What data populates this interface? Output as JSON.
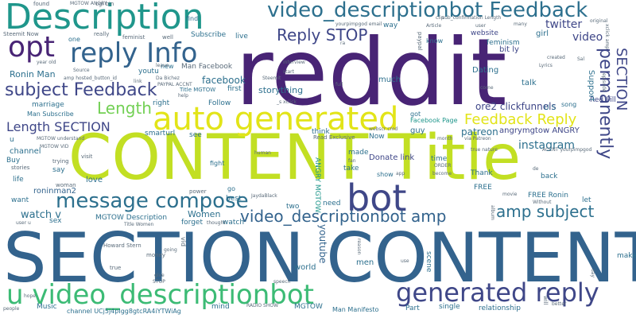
{
  "words": {
    "reddit": "reddit",
    "content_title": "CONTENT Title",
    "section_content": "SECTION CONTENT",
    "description": "Description",
    "video_descriptionbot_feedback": "video_descriptionbot Feedback",
    "opt": "opt",
    "reply_info": "reply Info",
    "reply_stop": "Reply STOP",
    "auto_generated": "auto generated",
    "bot": "bot",
    "subject_feedback": "subject Feedback",
    "length": "Length",
    "length_section": "Length SECTION",
    "message_compose": "message compose",
    "video_descriptionbot_amp": "video_descriptionbot amp",
    "amp_subject": "amp subject",
    "u_video_descriptionbot": "u video_descriptionbot",
    "generated_reply": "generated reply",
    "feedback_reply": "Feedback Reply",
    "permanently": "permanently",
    "section_v": "SECTION",
    "twitter": "twitter",
    "video": "video",
    "instagram": "instagram",
    "patreon": "patreon",
    "facebook": "facebook",
    "man_facebook": "Man Facebook",
    "storything": "storything",
    "ronin_man": "Ronin Man",
    "subscribe": "Subscribe",
    "sub_it": "sub it",
    "youtube": "youtube",
    "watch_v": "watch v",
    "women": "Women",
    "mgtow_description": "MGTOW Description",
    "ronin_man2": "roninman2",
    "ore2_clickfunnels": "ore2 clickfunnels",
    "angrymgtow_angry": "angrymgtow ANGRY",
    "donate_link": "Donate link",
    "dating": "Dating",
    "website": "website",
    "red_pill": "Red Pill",
    "support": "Support",
    "girl": "girl",
    "bit_ly": "bit ly",
    "talk": "talk",
    "much": "much",
    "guy": "guy",
    "first": "first",
    "follow": "Follow",
    "right": "right",
    "see": "see",
    "smarturl": "smarturl",
    "marriage": "marriage",
    "man_subscribe": "Man Subscribe",
    "channel": "channel",
    "buy": "Buy",
    "life": "life",
    "love": "love",
    "want": "want",
    "sex": "sex",
    "world": "world",
    "men": "men",
    "make": "make",
    "free": "FREE",
    "free_ronin": "FREE Ronin",
    "now": "Now",
    "time": "time",
    "back": "back",
    "thank": "Thank",
    "take": "take",
    "made": "made",
    "show": "show",
    "scene": "scene",
    "part": "Part",
    "single": "single",
    "relationship": "relationship",
    "mgtow": "MGTOW",
    "man_manifesto": "Man Manifesto",
    "music": "Music",
    "mind": "mind",
    "channel_id": "channel UCj5j4pIgg8gtcRA4iYTWiAg",
    "radio_show": "RADIO SHOW",
    "twitter_u": "u",
    "two": "two",
    "need": "need",
    "forget": "forget",
    "watch": "watch",
    "best": "best",
    "fight": "fight",
    "go": "go",
    "let": "let",
    "live": "live",
    "one": "one",
    "new": "new",
    "find": "find",
    "way": "way",
    "know": "know",
    "think": "think",
    "got": "got",
    "u_s": "U S",
    "song": "song",
    "title_mgtow": "Title MGTOW",
    "youtu": "youtu",
    "facebook_page": "Facebook Page",
    "read_exclusive": "Read Exclusive",
    "angry_mgtow": "ANGRY MGTOW",
    "trying": "trying",
    "stories": "stories",
    "say": "say",
    "woman": "woman",
    "say2": "visit",
    "power": "power",
    "true": "true",
    "money": "money",
    "howard_stern": "Howard Stern",
    "feminist": "feminist",
    "feminism": "feminism",
    "well": "well",
    "really": "really",
    "cgi_bin": "cgi bin",
    "found": "found",
    "steemit_now": "Steemit Now",
    "year_old": "year old",
    "source": "Source",
    "amp_hosted": "amp hosted_button_id",
    "link": "link",
    "leave": "leave",
    "da_bichez": "Da Bichez",
    "interview": "interview",
    "start": "start",
    "help": "help",
    "xclick": "_s xclick",
    "lyrics": "Lyrics",
    "created": "created",
    "many": "many",
    "original": "original",
    "article": "Article",
    "clip": "clip",
    "sub_confirmation_length": "sub_confirmation Length",
    "yourpimpgod_email": "yourpimpgod email",
    "paypal": "paypal",
    "full": "full",
    "come": "come",
    "episode": "episode",
    "become": "become",
    "true_nature": "true nature",
    "via_patreon": "via Patreon",
    "accnt": "ACCNT yourpimpgod",
    "order": "ORDER",
    "month": "month",
    "mgtow_understand": "MGTOW understand",
    "mgtow_vid": "MGTOW VID",
    "human": "human",
    "fan": "fan",
    "movie": "movie",
    "album": "album",
    "without": "Without",
    "webscr": "webscr cmd",
    "app": "app",
    "use": "use",
    "day": "day",
    "better": "better",
    "will": "will",
    "speech": "speech",
    "people": "people",
    "hope": "hope",
    "stop": "STOP",
    "give": "give",
    "title_women": "Title Women",
    "vid": "vid",
    "going": "going",
    "thought": "thought",
    "mgtow_angry": "MGTOW ANGRY",
    "user_u": "user u",
    "jaydablack": "JaydaBlack",
    "sal": "Sal",
    "user": "user",
    "de": "de",
    "paypal_accnt": "PAYPAL ACCNT",
    "ra": "ra",
    "steemit": "Steemit",
    "reason": "reason",
    "xclick_amp": "xclick amp"
  }
}
